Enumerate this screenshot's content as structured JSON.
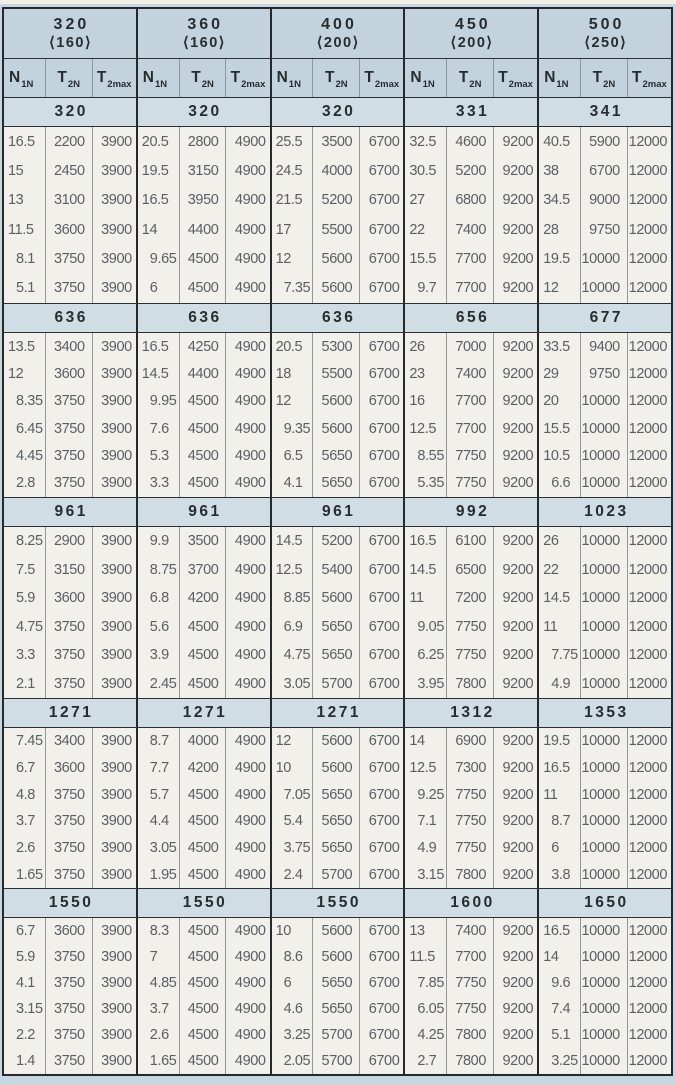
{
  "colors": {
    "page_bg": "#c7d6df",
    "header_bg": "#c2d3dd",
    "band_bg": "#d0dde4",
    "cell_bg": "#f1f0ea",
    "frame_border": "#26292b",
    "data_text": "#5a5f63",
    "header_text": "#272c30"
  },
  "table": {
    "groups": [
      {
        "size": "320",
        "bore": "⟨160⟩"
      },
      {
        "size": "360",
        "bore": "⟨160⟩"
      },
      {
        "size": "400",
        "bore": "⟨200⟩"
      },
      {
        "size": "450",
        "bore": "⟨200⟩"
      },
      {
        "size": "500",
        "bore": "⟨250⟩"
      }
    ],
    "columns": [
      {
        "base": "N",
        "sub": "1N"
      },
      {
        "base": "T",
        "sub": "2N"
      },
      {
        "base": "T",
        "sub": "2max"
      }
    ],
    "sections": [
      {
        "groups": [
          {
            "ratio": "320",
            "rows": [
              [
                "16.5",
                "2200",
                "3900"
              ],
              [
                "15",
                "2450",
                "3900"
              ],
              [
                "13",
                "3100",
                "3900"
              ],
              [
                "11.5",
                "3600",
                "3900"
              ],
              [
                "8.1",
                "3750",
                "3900"
              ],
              [
                "5.1",
                "3750",
                "3900"
              ]
            ]
          },
          {
            "ratio": "320",
            "rows": [
              [
                "20.5",
                "2800",
                "4900"
              ],
              [
                "19.5",
                "3150",
                "4900"
              ],
              [
                "16.5",
                "3950",
                "4900"
              ],
              [
                "14",
                "4400",
                "4900"
              ],
              [
                "9.65",
                "4500",
                "4900"
              ],
              [
                "6",
                "4500",
                "4900"
              ]
            ]
          },
          {
            "ratio": "320",
            "rows": [
              [
                "25.5",
                "3500",
                "6700"
              ],
              [
                "24.5",
                "4000",
                "6700"
              ],
              [
                "21.5",
                "5200",
                "6700"
              ],
              [
                "17",
                "5500",
                "6700"
              ],
              [
                "12",
                "5600",
                "6700"
              ],
              [
                "7.35",
                "5600",
                "6700"
              ]
            ]
          },
          {
            "ratio": "331",
            "rows": [
              [
                "32.5",
                "4600",
                "9200"
              ],
              [
                "30.5",
                "5200",
                "9200"
              ],
              [
                "27",
                "6800",
                "9200"
              ],
              [
                "22",
                "7400",
                "9200"
              ],
              [
                "15.5",
                "7700",
                "9200"
              ],
              [
                "9.7",
                "7700",
                "9200"
              ]
            ]
          },
          {
            "ratio": "341",
            "rows": [
              [
                "40.5",
                "5900",
                "12000"
              ],
              [
                "38",
                "6700",
                "12000"
              ],
              [
                "34.5",
                "9000",
                "12000"
              ],
              [
                "28",
                "9750",
                "12000"
              ],
              [
                "19.5",
                "10000",
                "12000"
              ],
              [
                "12",
                "10000",
                "12000"
              ]
            ]
          }
        ]
      },
      {
        "groups": [
          {
            "ratio": "636",
            "rows": [
              [
                "13.5",
                "3400",
                "3900"
              ],
              [
                "12",
                "3600",
                "3900"
              ],
              [
                "8.35",
                "3750",
                "3900"
              ],
              [
                "6.45",
                "3750",
                "3900"
              ],
              [
                "4.45",
                "3750",
                "3900"
              ],
              [
                "2.8",
                "3750",
                "3900"
              ]
            ]
          },
          {
            "ratio": "636",
            "rows": [
              [
                "16.5",
                "4250",
                "4900"
              ],
              [
                "14.5",
                "4400",
                "4900"
              ],
              [
                "9.95",
                "4500",
                "4900"
              ],
              [
                "7.6",
                "4500",
                "4900"
              ],
              [
                "5.3",
                "4500",
                "4900"
              ],
              [
                "3.3",
                "4500",
                "4900"
              ]
            ]
          },
          {
            "ratio": "636",
            "rows": [
              [
                "20.5",
                "5300",
                "6700"
              ],
              [
                "18",
                "5500",
                "6700"
              ],
              [
                "12",
                "5600",
                "6700"
              ],
              [
                "9.35",
                "5600",
                "6700"
              ],
              [
                "6.5",
                "5650",
                "6700"
              ],
              [
                "4.1",
                "5650",
                "6700"
              ]
            ]
          },
          {
            "ratio": "656",
            "rows": [
              [
                "26",
                "7000",
                "9200"
              ],
              [
                "23",
                "7400",
                "9200"
              ],
              [
                "16",
                "7700",
                "9200"
              ],
              [
                "12.5",
                "7700",
                "9200"
              ],
              [
                "8.55",
                "7750",
                "9200"
              ],
              [
                "5.35",
                "7750",
                "9200"
              ]
            ]
          },
          {
            "ratio": "677",
            "rows": [
              [
                "33.5",
                "9400",
                "12000"
              ],
              [
                "29",
                "9750",
                "12000"
              ],
              [
                "20",
                "10000",
                "12000"
              ],
              [
                "15.5",
                "10000",
                "12000"
              ],
              [
                "10.5",
                "10000",
                "12000"
              ],
              [
                "6.6",
                "10000",
                "12000"
              ]
            ]
          }
        ]
      },
      {
        "groups": [
          {
            "ratio": "961",
            "rows": [
              [
                "8.25",
                "2900",
                "3900"
              ],
              [
                "7.5",
                "3150",
                "3900"
              ],
              [
                "5.9",
                "3600",
                "3900"
              ],
              [
                "4.75",
                "3750",
                "3900"
              ],
              [
                "3.3",
                "3750",
                "3900"
              ],
              [
                "2.1",
                "3750",
                "3900"
              ]
            ]
          },
          {
            "ratio": "961",
            "rows": [
              [
                "9.9",
                "3500",
                "4900"
              ],
              [
                "8.75",
                "3700",
                "4900"
              ],
              [
                "6.8",
                "4200",
                "4900"
              ],
              [
                "5.6",
                "4500",
                "4900"
              ],
              [
                "3.9",
                "4500",
                "4900"
              ],
              [
                "2.45",
                "4500",
                "4900"
              ]
            ]
          },
          {
            "ratio": "961",
            "rows": [
              [
                "14.5",
                "5200",
                "6700"
              ],
              [
                "12.5",
                "5400",
                "6700"
              ],
              [
                "8.85",
                "5600",
                "6700"
              ],
              [
                "6.9",
                "5650",
                "6700"
              ],
              [
                "4.75",
                "5650",
                "6700"
              ],
              [
                "3.05",
                "5700",
                "6700"
              ]
            ]
          },
          {
            "ratio": "992",
            "rows": [
              [
                "16.5",
                "6100",
                "9200"
              ],
              [
                "14.5",
                "6500",
                "9200"
              ],
              [
                "11",
                "7200",
                "9200"
              ],
              [
                "9.05",
                "7750",
                "9200"
              ],
              [
                "6.25",
                "7750",
                "9200"
              ],
              [
                "3.95",
                "7800",
                "9200"
              ]
            ]
          },
          {
            "ratio": "1023",
            "rows": [
              [
                "26",
                "10000",
                "12000"
              ],
              [
                "22",
                "10000",
                "12000"
              ],
              [
                "14.5",
                "10000",
                "12000"
              ],
              [
                "11",
                "10000",
                "12000"
              ],
              [
                "7.75",
                "10000",
                "12000"
              ],
              [
                "4.9",
                "10000",
                "12000"
              ]
            ]
          }
        ]
      },
      {
        "groups": [
          {
            "ratio": "1271",
            "rows": [
              [
                "7.45",
                "3400",
                "3900"
              ],
              [
                "6.7",
                "3600",
                "3900"
              ],
              [
                "4.8",
                "3750",
                "3900"
              ],
              [
                "3.7",
                "3750",
                "3900"
              ],
              [
                "2.6",
                "3750",
                "3900"
              ],
              [
                "1.65",
                "3750",
                "3900"
              ]
            ]
          },
          {
            "ratio": "1271",
            "rows": [
              [
                "8.7",
                "4000",
                "4900"
              ],
              [
                "7.7",
                "4200",
                "4900"
              ],
              [
                "5.7",
                "4500",
                "4900"
              ],
              [
                "4.4",
                "4500",
                "4900"
              ],
              [
                "3.05",
                "4500",
                "4900"
              ],
              [
                "1.95",
                "4500",
                "4900"
              ]
            ]
          },
          {
            "ratio": "1271",
            "rows": [
              [
                "12",
                "5600",
                "6700"
              ],
              [
                "10",
                "5600",
                "6700"
              ],
              [
                "7.05",
                "5650",
                "6700"
              ],
              [
                "5.4",
                "5650",
                "6700"
              ],
              [
                "3.75",
                "5650",
                "6700"
              ],
              [
                "2.4",
                "5700",
                "6700"
              ]
            ]
          },
          {
            "ratio": "1312",
            "rows": [
              [
                "14",
                "6900",
                "9200"
              ],
              [
                "12.5",
                "7300",
                "9200"
              ],
              [
                "9.25",
                "7750",
                "9200"
              ],
              [
                "7.1",
                "7750",
                "9200"
              ],
              [
                "4.9",
                "7750",
                "9200"
              ],
              [
                "3.15",
                "7800",
                "9200"
              ]
            ]
          },
          {
            "ratio": "1353",
            "rows": [
              [
                "19.5",
                "10000",
                "12000"
              ],
              [
                "16.5",
                "10000",
                "12000"
              ],
              [
                "11",
                "10000",
                "12000"
              ],
              [
                "8.7",
                "10000",
                "12000"
              ],
              [
                "6",
                "10000",
                "12000"
              ],
              [
                "3.8",
                "10000",
                "12000"
              ]
            ]
          }
        ]
      },
      {
        "groups": [
          {
            "ratio": "1550",
            "rows": [
              [
                "6.7",
                "3600",
                "3900"
              ],
              [
                "5.9",
                "3750",
                "3900"
              ],
              [
                "4.1",
                "3750",
                "3900"
              ],
              [
                "3.15",
                "3750",
                "3900"
              ],
              [
                "2.2",
                "3750",
                "3900"
              ],
              [
                "1.4",
                "3750",
                "3900"
              ]
            ]
          },
          {
            "ratio": "1550",
            "rows": [
              [
                "8.3",
                "4500",
                "4900"
              ],
              [
                "7",
                "4500",
                "4900"
              ],
              [
                "4.85",
                "4500",
                "4900"
              ],
              [
                "3.7",
                "4500",
                "4900"
              ],
              [
                "2.6",
                "4500",
                "4900"
              ],
              [
                "1.65",
                "4500",
                "4900"
              ]
            ]
          },
          {
            "ratio": "1550",
            "rows": [
              [
                "10",
                "5600",
                "6700"
              ],
              [
                "8.6",
                "5600",
                "6700"
              ],
              [
                "6",
                "5650",
                "6700"
              ],
              [
                "4.6",
                "5650",
                "6700"
              ],
              [
                "3.25",
                "5700",
                "6700"
              ],
              [
                "2.05",
                "5700",
                "6700"
              ]
            ]
          },
          {
            "ratio": "1600",
            "rows": [
              [
                "13",
                "7400",
                "9200"
              ],
              [
                "11.5",
                "7700",
                "9200"
              ],
              [
                "7.85",
                "7750",
                "9200"
              ],
              [
                "6.05",
                "7750",
                "9200"
              ],
              [
                "4.25",
                "7800",
                "9200"
              ],
              [
                "2.7",
                "7800",
                "9200"
              ]
            ]
          },
          {
            "ratio": "1650",
            "rows": [
              [
                "16.5",
                "10000",
                "12000"
              ],
              [
                "14",
                "10000",
                "12000"
              ],
              [
                "9.6",
                "10000",
                "12000"
              ],
              [
                "7.4",
                "10000",
                "12000"
              ],
              [
                "5.1",
                "10000",
                "12000"
              ],
              [
                "3.25",
                "10000",
                "12000"
              ]
            ]
          }
        ]
      }
    ]
  }
}
